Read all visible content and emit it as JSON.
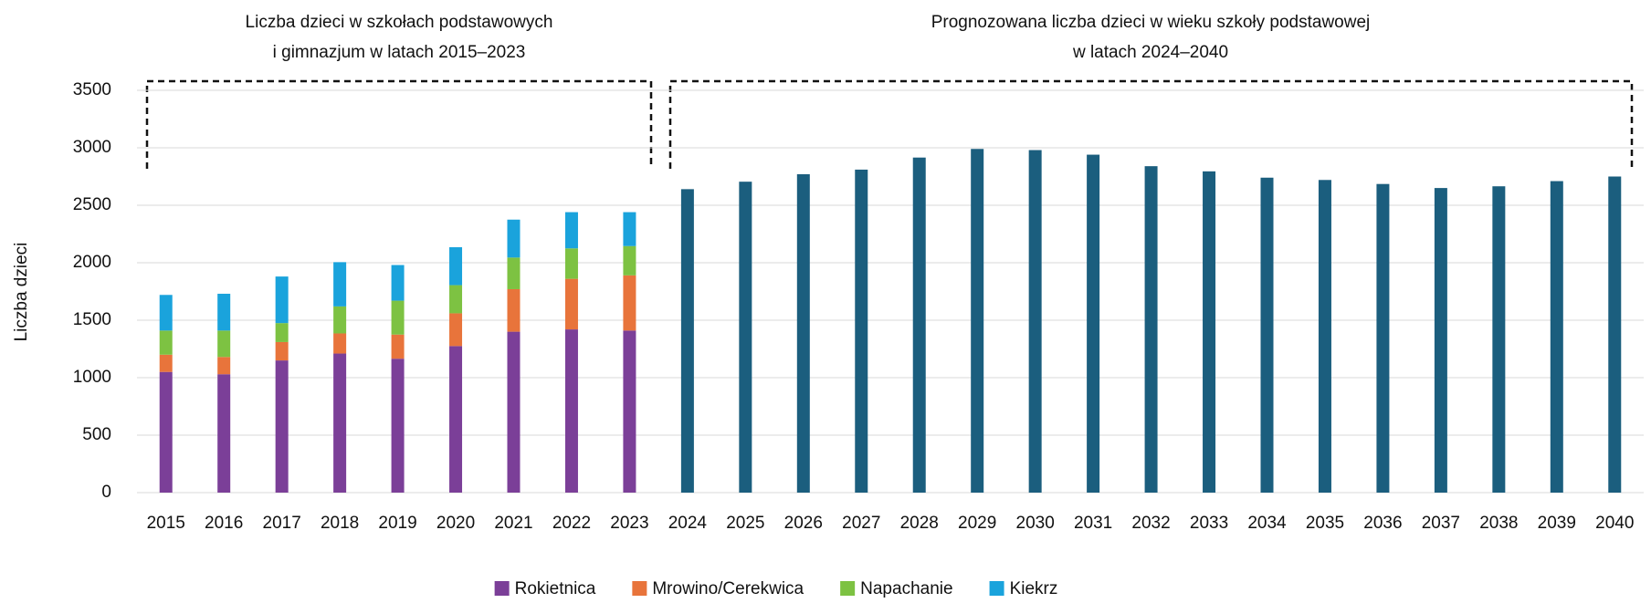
{
  "chart_data": {
    "type": "bar",
    "stacked": true,
    "annotations": [
      [
        "Liczba dzieci w szkołach podstawowych",
        "i gimnazjum w latach 2015–2023"
      ],
      [
        "Prognozowana liczba dzieci w wieku szkoły podstawowej",
        "w latach 2024–2040"
      ]
    ],
    "ylabel": "Liczba dzieci",
    "categories": [
      "2015",
      "2016",
      "2017",
      "2018",
      "2019",
      "2020",
      "2021",
      "2022",
      "2023",
      "2024",
      "2025",
      "2026",
      "2027",
      "2028",
      "2029",
      "2030",
      "2031",
      "2032",
      "2033",
      "2034",
      "2035",
      "2036",
      "2037",
      "2038",
      "2039",
      "2040"
    ],
    "series": [
      {
        "name": "Rokietnica",
        "color": "#7b3f98",
        "values": [
          1050,
          1030,
          1150,
          1210,
          1165,
          1275,
          1400,
          1420,
          1410,
          null,
          null,
          null,
          null,
          null,
          null,
          null,
          null,
          null,
          null,
          null,
          null,
          null,
          null,
          null,
          null,
          null
        ]
      },
      {
        "name": "Mrowino/Cerekwica",
        "color": "#e8743b",
        "values": [
          150,
          150,
          160,
          175,
          210,
          285,
          370,
          440,
          480,
          null,
          null,
          null,
          null,
          null,
          null,
          null,
          null,
          null,
          null,
          null,
          null,
          null,
          null,
          null,
          null,
          null
        ]
      },
      {
        "name": "Napachanie",
        "color": "#7dc242",
        "values": [
          210,
          230,
          165,
          235,
          295,
          245,
          275,
          265,
          255,
          null,
          null,
          null,
          null,
          null,
          null,
          null,
          null,
          null,
          null,
          null,
          null,
          null,
          null,
          null,
          null,
          null
        ]
      },
      {
        "name": "Kiekrz",
        "color": "#1aa3dc",
        "values": [
          310,
          320,
          405,
          385,
          310,
          330,
          330,
          315,
          295,
          null,
          null,
          null,
          null,
          null,
          null,
          null,
          null,
          null,
          null,
          null,
          null,
          null,
          null,
          null,
          null,
          null
        ]
      },
      {
        "color": "#1b5e7e",
        "values": [
          null,
          null,
          null,
          null,
          null,
          null,
          null,
          null,
          null,
          2640,
          2705,
          2770,
          2810,
          2915,
          2990,
          2980,
          2940,
          2840,
          2795,
          2740,
          2720,
          2685,
          2650,
          2665,
          2710,
          2750
        ]
      }
    ],
    "ylim": [
      0,
      3500
    ],
    "yticks": [
      0,
      500,
      1000,
      1500,
      2000,
      2500,
      3000,
      3500
    ],
    "grid": true,
    "legend": "bottom"
  }
}
